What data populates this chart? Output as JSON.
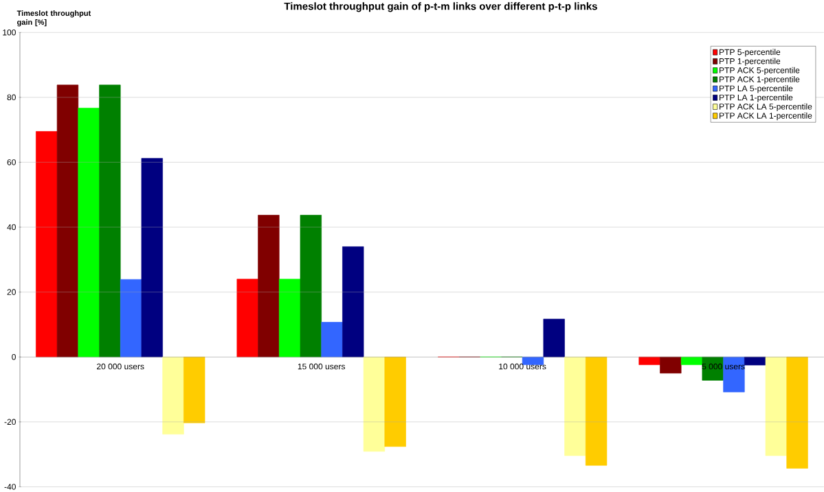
{
  "chart_data": {
    "type": "bar",
    "title": "Timeslot throughput gain of p-t-m links over different p-t-p links",
    "ylabel": "Timeslot throughput gain [%]",
    "categories": [
      "20 000 users",
      "15 000 users",
      "10 000 users",
      "5 000 users"
    ],
    "series": [
      {
        "name": "PTP 5-percentile",
        "color": "#ff0000",
        "values": [
          69.5,
          24,
          0,
          -2.4
        ]
      },
      {
        "name": "PTP 1-percentile",
        "color": "#800000",
        "values": [
          83.8,
          43.7,
          0,
          -5.0
        ]
      },
      {
        "name": "PTP ACK 5-percentile",
        "color": "#00ff00",
        "values": [
          76.7,
          24,
          0,
          -2.4
        ]
      },
      {
        "name": "PTP ACK 1-percentile",
        "color": "#008000",
        "values": [
          83.8,
          43.7,
          0,
          -7.2
        ]
      },
      {
        "name": "PTP LA 5-percentile",
        "color": "#3366ff",
        "values": [
          23.9,
          10.7,
          -2.4,
          -10.8
        ]
      },
      {
        "name": "PTP LA 1-percentile",
        "color": "#000080",
        "values": [
          61.2,
          34,
          11.7,
          -2.5
        ]
      },
      {
        "name": "PTP ACK LA 5-percentile",
        "color": "#ffff99",
        "values": [
          -23.8,
          -29.1,
          -30.4,
          -30.4
        ]
      },
      {
        "name": "PTP ACK LA 1-percentile",
        "color": "#ffcc00",
        "values": [
          -20.3,
          -27.6,
          -33.4,
          -34.3
        ]
      }
    ],
    "ylim": [
      -40,
      100
    ],
    "yticks": [
      -40,
      -20,
      0,
      20,
      40,
      60,
      80,
      100
    ],
    "grid": "y",
    "legend": "top right"
  }
}
